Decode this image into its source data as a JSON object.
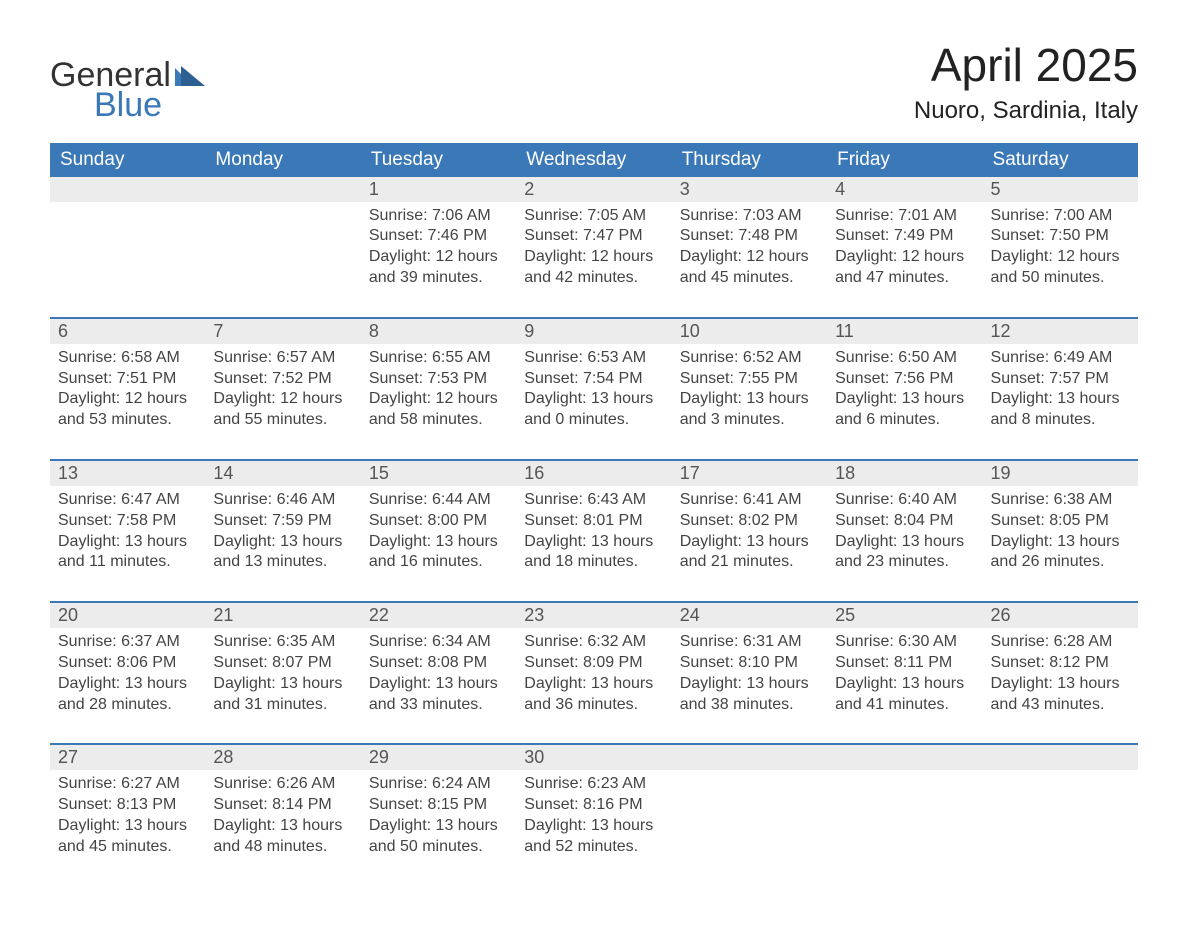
{
  "brand": {
    "line1": "General",
    "line2": "Blue"
  },
  "title": "April 2025",
  "subtitle": "Nuoro, Sardinia, Italy",
  "colors": {
    "accent": "#3b78b8",
    "row_border": "#3b78b8",
    "daynum_bg": "#ececec",
    "text": "#333333",
    "page_bg": "#ffffff",
    "header_text": "#ffffff"
  },
  "weekdays": [
    "Sunday",
    "Monday",
    "Tuesday",
    "Wednesday",
    "Thursday",
    "Friday",
    "Saturday"
  ],
  "weeks": [
    [
      {
        "day": null
      },
      {
        "day": null
      },
      {
        "day": 1,
        "sunrise": "7:06 AM",
        "sunset": "7:46 PM",
        "daylight": "12 hours and 39 minutes."
      },
      {
        "day": 2,
        "sunrise": "7:05 AM",
        "sunset": "7:47 PM",
        "daylight": "12 hours and 42 minutes."
      },
      {
        "day": 3,
        "sunrise": "7:03 AM",
        "sunset": "7:48 PM",
        "daylight": "12 hours and 45 minutes."
      },
      {
        "day": 4,
        "sunrise": "7:01 AM",
        "sunset": "7:49 PM",
        "daylight": "12 hours and 47 minutes."
      },
      {
        "day": 5,
        "sunrise": "7:00 AM",
        "sunset": "7:50 PM",
        "daylight": "12 hours and 50 minutes."
      }
    ],
    [
      {
        "day": 6,
        "sunrise": "6:58 AM",
        "sunset": "7:51 PM",
        "daylight": "12 hours and 53 minutes."
      },
      {
        "day": 7,
        "sunrise": "6:57 AM",
        "sunset": "7:52 PM",
        "daylight": "12 hours and 55 minutes."
      },
      {
        "day": 8,
        "sunrise": "6:55 AM",
        "sunset": "7:53 PM",
        "daylight": "12 hours and 58 minutes."
      },
      {
        "day": 9,
        "sunrise": "6:53 AM",
        "sunset": "7:54 PM",
        "daylight": "13 hours and 0 minutes."
      },
      {
        "day": 10,
        "sunrise": "6:52 AM",
        "sunset": "7:55 PM",
        "daylight": "13 hours and 3 minutes."
      },
      {
        "day": 11,
        "sunrise": "6:50 AM",
        "sunset": "7:56 PM",
        "daylight": "13 hours and 6 minutes."
      },
      {
        "day": 12,
        "sunrise": "6:49 AM",
        "sunset": "7:57 PM",
        "daylight": "13 hours and 8 minutes."
      }
    ],
    [
      {
        "day": 13,
        "sunrise": "6:47 AM",
        "sunset": "7:58 PM",
        "daylight": "13 hours and 11 minutes."
      },
      {
        "day": 14,
        "sunrise": "6:46 AM",
        "sunset": "7:59 PM",
        "daylight": "13 hours and 13 minutes."
      },
      {
        "day": 15,
        "sunrise": "6:44 AM",
        "sunset": "8:00 PM",
        "daylight": "13 hours and 16 minutes."
      },
      {
        "day": 16,
        "sunrise": "6:43 AM",
        "sunset": "8:01 PM",
        "daylight": "13 hours and 18 minutes."
      },
      {
        "day": 17,
        "sunrise": "6:41 AM",
        "sunset": "8:02 PM",
        "daylight": "13 hours and 21 minutes."
      },
      {
        "day": 18,
        "sunrise": "6:40 AM",
        "sunset": "8:04 PM",
        "daylight": "13 hours and 23 minutes."
      },
      {
        "day": 19,
        "sunrise": "6:38 AM",
        "sunset": "8:05 PM",
        "daylight": "13 hours and 26 minutes."
      }
    ],
    [
      {
        "day": 20,
        "sunrise": "6:37 AM",
        "sunset": "8:06 PM",
        "daylight": "13 hours and 28 minutes."
      },
      {
        "day": 21,
        "sunrise": "6:35 AM",
        "sunset": "8:07 PM",
        "daylight": "13 hours and 31 minutes."
      },
      {
        "day": 22,
        "sunrise": "6:34 AM",
        "sunset": "8:08 PM",
        "daylight": "13 hours and 33 minutes."
      },
      {
        "day": 23,
        "sunrise": "6:32 AM",
        "sunset": "8:09 PM",
        "daylight": "13 hours and 36 minutes."
      },
      {
        "day": 24,
        "sunrise": "6:31 AM",
        "sunset": "8:10 PM",
        "daylight": "13 hours and 38 minutes."
      },
      {
        "day": 25,
        "sunrise": "6:30 AM",
        "sunset": "8:11 PM",
        "daylight": "13 hours and 41 minutes."
      },
      {
        "day": 26,
        "sunrise": "6:28 AM",
        "sunset": "8:12 PM",
        "daylight": "13 hours and 43 minutes."
      }
    ],
    [
      {
        "day": 27,
        "sunrise": "6:27 AM",
        "sunset": "8:13 PM",
        "daylight": "13 hours and 45 minutes."
      },
      {
        "day": 28,
        "sunrise": "6:26 AM",
        "sunset": "8:14 PM",
        "daylight": "13 hours and 48 minutes."
      },
      {
        "day": 29,
        "sunrise": "6:24 AM",
        "sunset": "8:15 PM",
        "daylight": "13 hours and 50 minutes."
      },
      {
        "day": 30,
        "sunrise": "6:23 AM",
        "sunset": "8:16 PM",
        "daylight": "13 hours and 52 minutes."
      },
      {
        "day": null
      },
      {
        "day": null
      },
      {
        "day": null
      }
    ]
  ],
  "labels": {
    "sunrise_prefix": "Sunrise: ",
    "sunset_prefix": "Sunset: ",
    "daylight_prefix": "Daylight: "
  }
}
